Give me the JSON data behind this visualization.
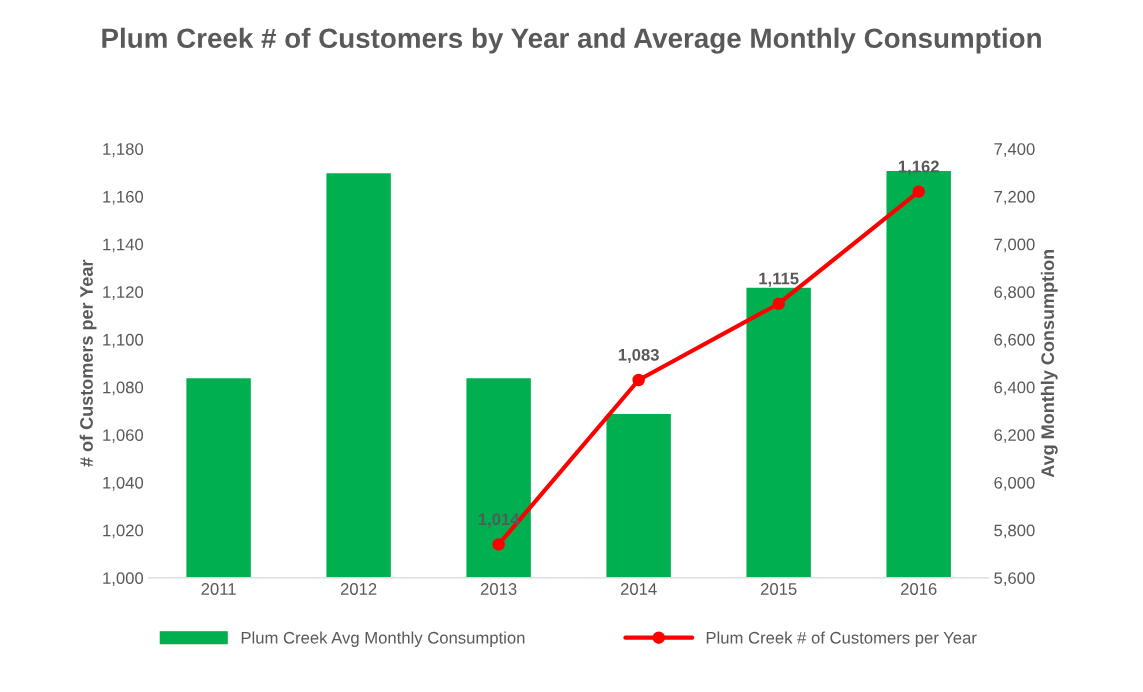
{
  "chart_data": {
    "type": "bar",
    "title": "Plum Creek # of Customers by Year and Average Monthly Consumption",
    "ylabel": "# of Customers per Year",
    "y2label": "Avg Monthly Consumption",
    "categories": [
      "2011",
      "2012",
      "2013",
      "2014",
      "2015",
      "2016"
    ],
    "series": [
      {
        "name": "Plum Creek Avg Monthly Consumption",
        "axis": "y2",
        "color": "#00b050",
        "values": [
          6440,
          7300,
          6440,
          6290,
          6820,
          7310
        ]
      },
      {
        "name": "Plum Creek # of Customers per Year",
        "type": "line",
        "axis": "y",
        "color": "#ff0000",
        "marker": "circle",
        "values": [
          null,
          null,
          1014,
          1083,
          1115,
          1162
        ],
        "value_labels": [
          null,
          null,
          "1,014",
          "1,083",
          "1,115",
          "1,162"
        ]
      }
    ],
    "ylim": [
      1000,
      1180
    ],
    "yticks": [
      {
        "value": 1000,
        "label": "1,000"
      },
      {
        "value": 1020,
        "label": "1,020"
      },
      {
        "value": 1040,
        "label": "1,040"
      },
      {
        "value": 1060,
        "label": "1,060"
      },
      {
        "value": 1080,
        "label": "1,080"
      },
      {
        "value": 1100,
        "label": "1,100"
      },
      {
        "value": 1120,
        "label": "1,120"
      },
      {
        "value": 1140,
        "label": "1,140"
      },
      {
        "value": 1160,
        "label": "1,160"
      },
      {
        "value": 1180,
        "label": "1,180"
      }
    ],
    "y2lim": [
      5600,
      7400
    ],
    "y2ticks": [
      {
        "value": 5600,
        "label": "5,600"
      },
      {
        "value": 5800,
        "label": "5,800"
      },
      {
        "value": 6000,
        "label": "6,000"
      },
      {
        "value": 6200,
        "label": "6,200"
      },
      {
        "value": 6400,
        "label": "6,400"
      },
      {
        "value": 6600,
        "label": "6,600"
      },
      {
        "value": 6800,
        "label": "6,800"
      },
      {
        "value": 7000,
        "label": "7,000"
      },
      {
        "value": 7200,
        "label": "7,200"
      },
      {
        "value": 7400,
        "label": "7,400"
      }
    ],
    "legend": "bottom",
    "grid": false
  }
}
